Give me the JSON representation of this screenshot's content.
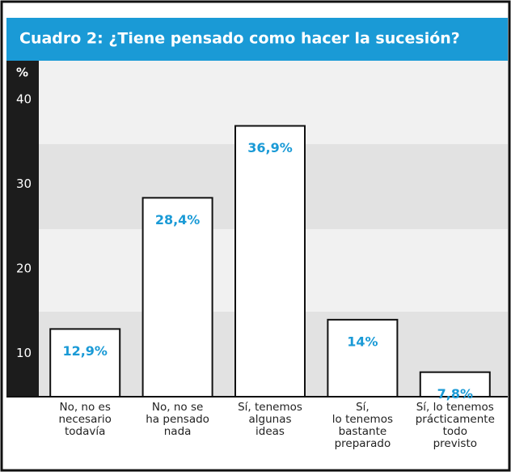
{
  "chart_data": {
    "type": "bar",
    "title": "Cuadro 2:  ¿Tiene pensado como hacer la sucesión?",
    "ylabel": "%",
    "categories": [
      "No, no es\nnecesario\ntodavía",
      "No, no se\nha pensado\nnada",
      "Sí, tenemos\nalgunas\nideas",
      "Sí,\nlo tenemos\nbastante\npreparado",
      "Sí, lo tenemos\nprácticamente\ntodo\nprevisto"
    ],
    "values": [
      12.9,
      28.4,
      36.9,
      14,
      7.8
    ],
    "value_labels": [
      "12,9%",
      "28,4%",
      "36,9%",
      "14%",
      "7,8%"
    ],
    "color": "#ffffff",
    "label_color": "#1a9ad6",
    "ylim": [
      4.9,
      44.6
    ],
    "yticks": [
      10,
      20,
      30,
      40
    ]
  }
}
